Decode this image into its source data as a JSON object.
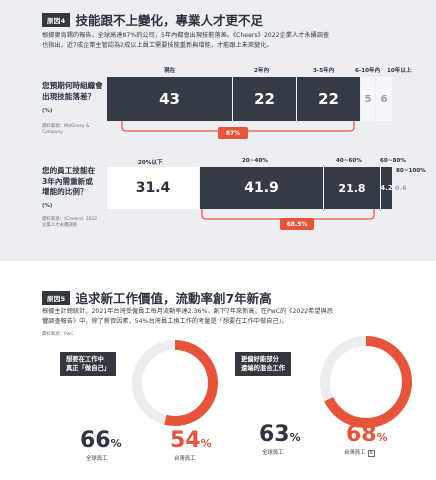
{
  "section4": {
    "tag": "原因4",
    "heading": "技能跟不上變化，專業人才更不足",
    "intro_line1": "根據麥肯錫的報告，全球高達87%的公司，5年內都會出現技能落差。《Cheers》2022企業人才永續調查",
    "intro_line2": "也指出，近7成企業主管認為2成以上員工需要技能重新與增能，才能跟上未來變化。"
  },
  "chart_gap": {
    "question_line1": "您預期何時組織會",
    "question_line2": "出現技能落差？",
    "unit": "(%)",
    "source_line1": "資料來源：McKinsey &",
    "source_line2": "Company",
    "column_headers": [
      "現在",
      "2年內",
      "3-5年內",
      "6-10年內",
      "10年以上"
    ],
    "values": [
      "43",
      "22",
      "22",
      "5",
      "6"
    ],
    "summary": "87%"
  },
  "chart_data": {
    "type": "bar",
    "title": "",
    "stacked": true,
    "horizontal": true,
    "bars": [
      {
        "label": "您預期何時組織會出現技能落差？",
        "categories": [
          "現在",
          "2年內",
          "3-5年內",
          "6-10年內",
          "10年以上"
        ],
        "values": [
          43,
          22,
          22,
          5,
          6
        ],
        "summary": "87%"
      },
      {
        "label": "您的員工技能在3年內需重新或增能的比例？",
        "categories": [
          "20%以下",
          "20~40%",
          "40~60%",
          "60~80%",
          "80~100%"
        ],
        "values": [
          31.4,
          41.9,
          21.8,
          4.2,
          0.6
        ],
        "summary": "68.5%"
      }
    ],
    "ylabel": "(%)",
    "colors": {
      "primary": "#353b44",
      "highlight": "#ffffff",
      "accent": "#e8543a"
    }
  },
  "chart_reskill": {
    "question_line1": "您的員工技能在",
    "question_line2": "3年內需重新或",
    "question_line3": "增能的比例？",
    "unit": "(%)",
    "source_line1": "資料來源：《Cheers》2022",
    "source_line2": "企業人才永續調查",
    "column_headers": [
      "20%以下",
      "20~40%",
      "40~60%",
      "60~80%",
      "80~100%"
    ],
    "values": [
      "31.4",
      "41.9",
      "21.8",
      "4.2",
      "0.6"
    ],
    "summary": "68.5%"
  },
  "section5": {
    "tag": "原因5",
    "heading": "追求新工作價值，流動率創7年新高",
    "intro_line1": "根據主計總統計，2021年台灣受僱員工每月流動率達2.36%，創下7年來新高。在PwC的《2022希望與恐",
    "intro_line2": "懼調查報告》中，除了薪資因素，54%台灣員工換工作的考量是「想要在工作中做自己」。",
    "source": "資料來源：PwC",
    "accent_color": "#e8543a"
  },
  "donut_left": {
    "label_line1": "想要在工作中",
    "label_line2": "真正「做自己」",
    "global_value": "66",
    "global_pct": "%",
    "global_caption": "全球員工",
    "taiwan_value": "54",
    "taiwan_pct": "%",
    "taiwan_caption": "台灣員工",
    "taiwan_fraction": 0.54
  },
  "donut_right": {
    "label_line1": "更偏好能部分",
    "label_line2": "遠端的混合工作",
    "global_value": "63",
    "global_pct": "%",
    "global_caption": "全球員工",
    "taiwan_value": "68",
    "taiwan_pct": "%",
    "taiwan_caption": "台灣員工",
    "taiwan_fraction": 0.68,
    "badge": "B"
  }
}
